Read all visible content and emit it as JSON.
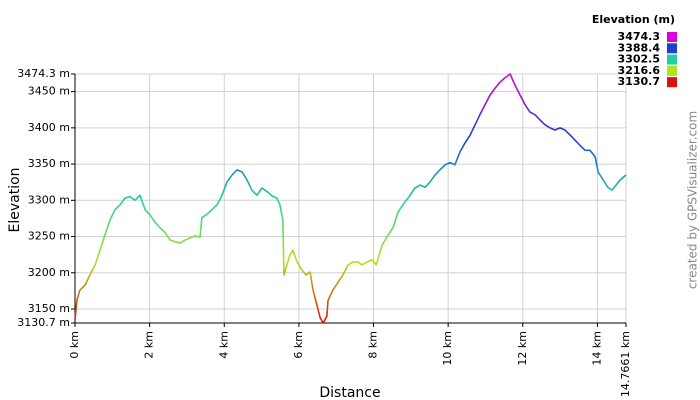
{
  "chart_data": {
    "type": "line",
    "xlabel": "Distance",
    "ylabel": "Elevation",
    "credit": "created by GPSVisualizer.com",
    "xlim": [
      0,
      14.7661
    ],
    "ylim": [
      3130.7,
      3474.3
    ],
    "xticks": [
      {
        "value": 0,
        "label": "0 km"
      },
      {
        "value": 2,
        "label": "2 km"
      },
      {
        "value": 4,
        "label": "4 km"
      },
      {
        "value": 6,
        "label": "6 km"
      },
      {
        "value": 8,
        "label": "8 km"
      },
      {
        "value": 10,
        "label": "10 km"
      },
      {
        "value": 12,
        "label": "12 km"
      },
      {
        "value": 14,
        "label": "14 km"
      },
      {
        "value": 14.7661,
        "label": "14.7661 km"
      }
    ],
    "yticks": [
      {
        "value": 3130.7,
        "label": "3130.7 m"
      },
      {
        "value": 3150,
        "label": "3150 m"
      },
      {
        "value": 3200,
        "label": "3200 m"
      },
      {
        "value": 3250,
        "label": "3250 m"
      },
      {
        "value": 3300,
        "label": "3300 m"
      },
      {
        "value": 3350,
        "label": "3350 m"
      },
      {
        "value": 3400,
        "label": "3400 m"
      },
      {
        "value": 3450,
        "label": "3450 m"
      },
      {
        "value": 3474.3,
        "label": "3474.3 m"
      }
    ],
    "grid": true,
    "color_scale": {
      "title": "Elevation (m)",
      "stops": [
        {
          "value": 3474.3,
          "color": "#dd00dd"
        },
        {
          "value": 3388.4,
          "color": "#1f3fd0"
        },
        {
          "value": 3302.5,
          "color": "#1fd0a0"
        },
        {
          "value": 3216.6,
          "color": "#b4e21e"
        },
        {
          "value": 3130.7,
          "color": "#dd1010"
        }
      ]
    },
    "x": [
      0,
      0.05,
      0.13,
      0.27,
      0.4,
      0.54,
      0.67,
      0.8,
      0.94,
      1.07,
      1.21,
      1.34,
      1.47,
      1.61,
      1.74,
      1.88,
      2.01,
      2.14,
      2.28,
      2.41,
      2.55,
      2.68,
      2.81,
      2.95,
      3.08,
      3.22,
      3.35,
      3.4,
      3.54,
      3.67,
      3.81,
      3.94,
      4.07,
      4.21,
      4.34,
      4.48,
      4.61,
      4.74,
      4.88,
      5.01,
      5.15,
      5.28,
      5.41,
      5.49,
      5.57,
      5.6,
      5.76,
      5.84,
      5.95,
      6.08,
      6.19,
      6.3,
      6.38,
      6.46,
      6.57,
      6.65,
      6.75,
      6.78,
      6.91,
      7.05,
      7.18,
      7.32,
      7.45,
      7.58,
      7.69,
      7.83,
      7.96,
      8.07,
      8.23,
      8.39,
      8.52,
      8.66,
      8.79,
      8.98,
      9.11,
      9.25,
      9.38,
      9.51,
      9.65,
      9.78,
      9.92,
      10.05,
      10.18,
      10.32,
      10.45,
      10.59,
      10.72,
      10.85,
      10.99,
      11.12,
      11.26,
      11.39,
      11.52,
      11.66,
      11.79,
      11.93,
      12.06,
      12.19,
      12.33,
      12.46,
      12.6,
      12.73,
      12.86,
      13.0,
      13.13,
      13.27,
      13.4,
      13.53,
      13.67,
      13.8,
      13.94,
      14.02,
      14.12,
      14.28,
      14.39,
      14.5,
      14.61,
      14.7661
    ],
    "values": [
      3135,
      3162,
      3176,
      3183,
      3197,
      3211,
      3231,
      3252,
      3273,
      3287,
      3294,
      3303,
      3305,
      3300,
      3307,
      3287,
      3280,
      3270,
      3262,
      3256,
      3245,
      3243,
      3241,
      3245,
      3248,
      3251,
      3249,
      3276,
      3281,
      3287,
      3294,
      3307,
      3325,
      3335,
      3342,
      3339,
      3328,
      3314,
      3307,
      3317,
      3312,
      3306,
      3303,
      3294,
      3273,
      3197,
      3225,
      3231,
      3215,
      3204,
      3197,
      3201,
      3176,
      3160,
      3138,
      3130.7,
      3140,
      3162,
      3176,
      3187,
      3197,
      3211,
      3215,
      3215,
      3211,
      3215,
      3218,
      3211,
      3238,
      3252,
      3262,
      3284,
      3294,
      3307,
      3317,
      3321,
      3318,
      3325,
      3335,
      3342,
      3349,
      3352,
      3349,
      3367,
      3379,
      3390,
      3404,
      3418,
      3432,
      3445,
      3455,
      3463,
      3469,
      3474.3,
      3459,
      3445,
      3432,
      3422,
      3418,
      3411,
      3404,
      3400,
      3397,
      3400,
      3397,
      3390,
      3383,
      3376,
      3369,
      3369,
      3360,
      3339,
      3331,
      3318,
      3314,
      3321,
      3328,
      3335
    ]
  }
}
